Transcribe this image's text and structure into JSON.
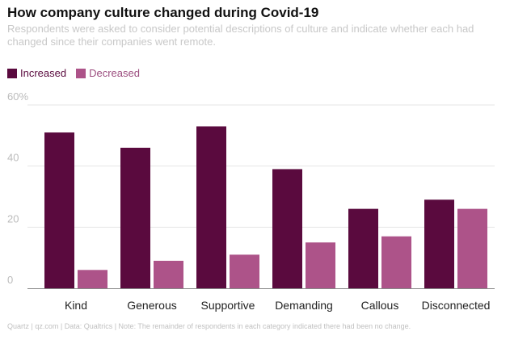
{
  "header": {
    "title": "How company culture changed during Covid-19",
    "subtitle": "Respondents were asked to consider potential descriptions of culture and indicate whether each had changed since their companies went remote."
  },
  "footer": {
    "source": "Quartz | qz.com | Data: Qualtrics | Note: The remainder of respondents in each category indicated there had been no change."
  },
  "colors": {
    "increased": "#5a0a3e",
    "decreased": "#ad5389",
    "increased_text": "#5a0a3e",
    "decreased_text": "#9b4c7e",
    "grid": "#e6e6e6",
    "axis": "#888888",
    "tick_text": "#bcbcbc",
    "category_text": "#222222"
  },
  "chart_data": {
    "type": "bar",
    "categories": [
      "Kind",
      "Generous",
      "Supportive",
      "Demanding",
      "Callous",
      "Disconnected"
    ],
    "series": [
      {
        "name": "Increased",
        "values": [
          51,
          46,
          53,
          39,
          26,
          29
        ]
      },
      {
        "name": "Decreased",
        "values": [
          6,
          9,
          11,
          15,
          17,
          26
        ]
      }
    ],
    "ylim": [
      0,
      60
    ],
    "yticks": [
      0,
      20,
      40,
      60
    ],
    "ytick_labels": [
      "0",
      "20",
      "40",
      "60%"
    ],
    "grid": true,
    "legend_position": "top-left"
  }
}
